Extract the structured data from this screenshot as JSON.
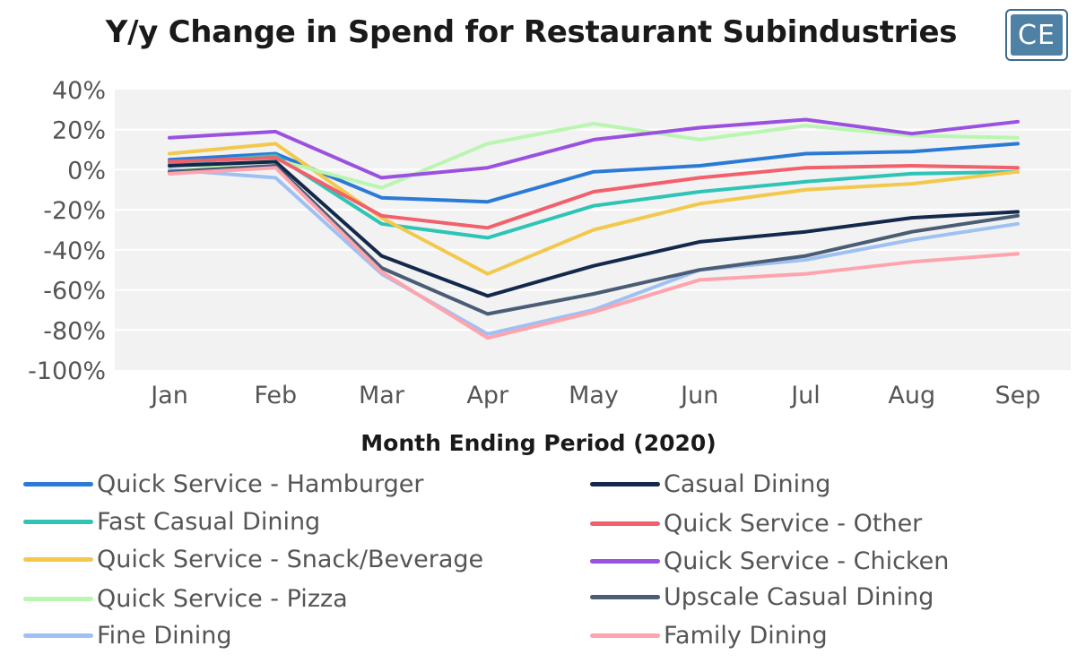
{
  "title": "Y/y Change in Spend for Restaurant Subindustries",
  "logo": {
    "text": "CE"
  },
  "chart_data": {
    "type": "line",
    "title": "Y/y Change in Spend for Restaurant Subindustries",
    "xlabel": "Month Ending Period (2020)",
    "ylabel": "",
    "x": [
      "Jan",
      "Feb",
      "Mar",
      "Apr",
      "May",
      "Jun",
      "Jul",
      "Aug",
      "Sep"
    ],
    "ylim": [
      -100,
      40
    ],
    "yticks": [
      40,
      20,
      0,
      -20,
      -40,
      -60,
      -80,
      -100
    ],
    "ytick_labels": [
      "40%",
      "20%",
      "0%",
      "-20%",
      "-40%",
      "-60%",
      "-80%",
      "-100%"
    ],
    "grid": true,
    "legend_position": "bottom",
    "series": [
      {
        "name": "Quick Service - Hamburger",
        "color": "#2b7bd6",
        "values": [
          5,
          8,
          -14,
          -16,
          -1,
          2,
          8,
          9,
          13
        ]
      },
      {
        "name": "Fast Casual Dining",
        "color": "#2ec4b6",
        "values": [
          3,
          7,
          -27,
          -34,
          -18,
          -11,
          -6,
          -2,
          -1
        ]
      },
      {
        "name": "Quick Service - Snack/Beverage",
        "color": "#f2c94c",
        "values": [
          8,
          13,
          -24,
          -52,
          -30,
          -17,
          -10,
          -7,
          -1
        ]
      },
      {
        "name": "Quick Service - Pizza",
        "color": "#b9f6b0",
        "values": [
          -1,
          5,
          -9,
          13,
          23,
          15,
          22,
          17,
          16
        ]
      },
      {
        "name": "Fine Dining",
        "color": "#9fc1f2",
        "values": [
          0,
          -4,
          -52,
          -82,
          -70,
          -50,
          -45,
          -35,
          -27
        ]
      },
      {
        "name": "Casual Dining",
        "color": "#13294b",
        "values": [
          2,
          4,
          -43,
          -63,
          -48,
          -36,
          -31,
          -24,
          -21
        ]
      },
      {
        "name": "Quick Service - Other",
        "color": "#f2606b",
        "values": [
          4,
          6,
          -23,
          -29,
          -11,
          -4,
          1,
          2,
          1
        ]
      },
      {
        "name": "Quick Service - Chicken",
        "color": "#9b51e0",
        "values": [
          16,
          19,
          -4,
          1,
          15,
          21,
          25,
          18,
          24
        ]
      },
      {
        "name": "Upscale Casual Dining",
        "color": "#4a5d75",
        "values": [
          -1,
          2,
          -49,
          -72,
          -62,
          -50,
          -43,
          -31,
          -23
        ]
      },
      {
        "name": "Family Dining",
        "color": "#ffa3ad",
        "values": [
          -2,
          1,
          -51,
          -84,
          -71,
          -55,
          -52,
          -46,
          -42
        ]
      }
    ]
  }
}
